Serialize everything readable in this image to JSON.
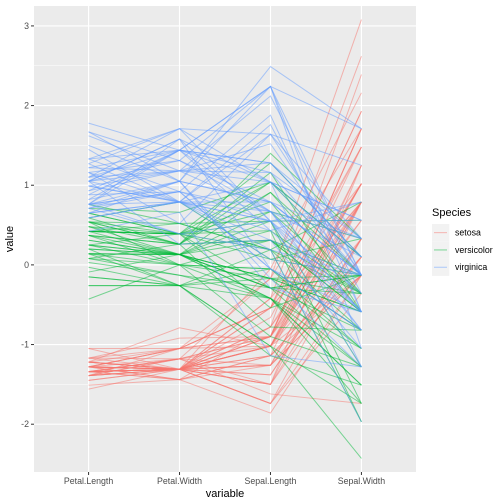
{
  "chart_data": {
    "type": "line",
    "subtype": "parallel-coordinates",
    "title": "",
    "xlabel": "variable",
    "ylabel": "value",
    "categories": [
      "Petal.Length",
      "Petal.Width",
      "Sepal.Length",
      "Sepal.Width"
    ],
    "ylim": [
      -2.6,
      3.25
    ],
    "yticks": [
      -2,
      -1,
      0,
      1,
      2,
      3
    ],
    "grid": true,
    "line_opacity": 0.5,
    "legend": {
      "title": "Species",
      "position": "right",
      "entries": [
        "setosa",
        "versicolor",
        "virginica"
      ]
    },
    "series": [
      {
        "name": "setosa",
        "color": "#F8766D",
        "lines": [
          [
            -1.34,
            -1.31,
            -0.9,
            1.02
          ],
          [
            -1.34,
            -1.31,
            -1.14,
            -0.13
          ],
          [
            -1.39,
            -1.31,
            -1.38,
            0.33
          ],
          [
            -1.28,
            -1.31,
            -1.5,
            0.1
          ],
          [
            -1.34,
            -1.31,
            -1.02,
            1.25
          ],
          [
            -1.17,
            -1.05,
            -0.54,
            1.93
          ],
          [
            -1.34,
            -1.18,
            -1.5,
            0.79
          ],
          [
            -1.28,
            -1.31,
            -1.02,
            0.79
          ],
          [
            -1.34,
            -1.31,
            -1.74,
            -0.36
          ],
          [
            -1.28,
            -1.44,
            -1.14,
            0.1
          ],
          [
            -1.28,
            -1.31,
            -0.54,
            1.48
          ],
          [
            -1.22,
            -1.31,
            -1.26,
            0.79
          ],
          [
            -1.34,
            -1.44,
            -1.26,
            -0.13
          ],
          [
            -1.51,
            -1.44,
            -1.86,
            -0.13
          ],
          [
            -1.45,
            -1.31,
            -0.05,
            2.16
          ],
          [
            -1.28,
            -1.05,
            -0.17,
            3.08
          ],
          [
            -1.39,
            -1.05,
            -0.54,
            1.93
          ],
          [
            -1.34,
            -1.18,
            -0.9,
            1.02
          ],
          [
            -1.17,
            -1.18,
            -0.17,
            1.71
          ],
          [
            -1.28,
            -1.18,
            -0.9,
            1.71
          ],
          [
            -1.17,
            -1.31,
            -0.54,
            0.79
          ],
          [
            -1.28,
            -1.05,
            -0.9,
            1.48
          ],
          [
            -1.56,
            -1.31,
            -1.5,
            1.25
          ],
          [
            -1.17,
            -0.92,
            -0.9,
            0.56
          ],
          [
            -1.05,
            -1.31,
            -1.26,
            0.79
          ],
          [
            -1.22,
            -1.31,
            -1.02,
            -0.13
          ],
          [
            -1.22,
            -1.05,
            -1.02,
            0.79
          ],
          [
            -1.28,
            -1.31,
            -0.78,
            1.02
          ],
          [
            -1.34,
            -1.31,
            -0.78,
            0.79
          ],
          [
            -1.22,
            -1.31,
            -1.38,
            0.33
          ],
          [
            -1.22,
            -1.31,
            -1.26,
            0.1
          ],
          [
            -1.28,
            -1.05,
            -0.54,
            0.79
          ],
          [
            -1.28,
            -1.44,
            -0.78,
            2.39
          ],
          [
            -1.34,
            -1.31,
            -0.42,
            2.62
          ],
          [
            -1.28,
            -1.31,
            -1.14,
            0.1
          ],
          [
            -1.45,
            -1.31,
            -1.02,
            0.33
          ],
          [
            -1.39,
            -1.31,
            -0.42,
            1.02
          ],
          [
            -1.34,
            -1.44,
            -1.14,
            1.25
          ],
          [
            -1.39,
            -1.31,
            -1.74,
            -0.13
          ],
          [
            -1.28,
            -1.31,
            -0.9,
            0.79
          ],
          [
            -1.39,
            -1.18,
            -1.02,
            1.02
          ],
          [
            -1.39,
            -1.18,
            -1.62,
            -1.74
          ],
          [
            -1.39,
            -1.31,
            -1.74,
            0.33
          ],
          [
            -1.22,
            -0.79,
            -1.02,
            1.02
          ],
          [
            -1.05,
            -1.05,
            -0.9,
            1.71
          ],
          [
            -1.34,
            -1.18,
            -1.26,
            -0.13
          ],
          [
            -1.22,
            -1.31,
            -0.9,
            1.71
          ],
          [
            -1.34,
            -1.31,
            -1.5,
            0.33
          ],
          [
            -1.28,
            -1.31,
            -0.66,
            1.48
          ],
          [
            -1.34,
            -1.31,
            -1.02,
            0.56
          ]
        ]
      },
      {
        "name": "versicolor",
        "color": "#00BA38",
        "lines": [
          [
            0.54,
            0.26,
            1.4,
            0.33
          ],
          [
            0.42,
            0.39,
            0.67,
            0.33
          ],
          [
            0.65,
            0.39,
            1.28,
            0.1
          ],
          [
            0.14,
            0.13,
            -0.42,
            -1.74
          ],
          [
            0.48,
            0.39,
            0.79,
            -0.59
          ],
          [
            0.42,
            0.13,
            -0.17,
            -0.59
          ],
          [
            0.54,
            0.52,
            0.55,
            0.56
          ],
          [
            -0.26,
            -0.26,
            -1.14,
            -1.51
          ],
          [
            0.48,
            0.13,
            0.91,
            -0.36
          ],
          [
            0.08,
            0.26,
            -0.78,
            -0.82
          ],
          [
            -0.15,
            -0.26,
            -1.02,
            -2.43
          ],
          [
            0.25,
            0.39,
            0.07,
            -0.13
          ],
          [
            0.14,
            -0.26,
            0.19,
            -1.97
          ],
          [
            0.54,
            0.26,
            0.31,
            -0.36
          ],
          [
            -0.09,
            0.13,
            -0.29,
            -0.36
          ],
          [
            0.37,
            0.26,
            1.04,
            0.1
          ],
          [
            0.42,
            0.39,
            -0.29,
            -0.13
          ],
          [
            0.2,
            -0.26,
            -0.05,
            -0.82
          ],
          [
            0.42,
            0.39,
            0.43,
            -1.97
          ],
          [
            0.08,
            -0.13,
            -0.29,
            -1.28
          ],
          [
            0.59,
            0.79,
            0.07,
            0.33
          ],
          [
            0.14,
            0.13,
            0.31,
            -0.59
          ],
          [
            0.65,
            0.39,
            0.55,
            -1.28
          ],
          [
            0.54,
            0.0,
            0.31,
            -0.59
          ],
          [
            0.31,
            0.13,
            0.67,
            -0.36
          ],
          [
            0.37,
            0.26,
            0.91,
            -0.13
          ],
          [
            0.59,
            0.26,
            1.16,
            -0.59
          ],
          [
            0.71,
            0.66,
            1.04,
            -0.13
          ],
          [
            0.42,
            0.39,
            0.19,
            -0.36
          ],
          [
            -0.15,
            -0.26,
            -0.17,
            -1.05
          ],
          [
            0.03,
            -0.13,
            -0.42,
            -1.51
          ],
          [
            -0.03,
            -0.26,
            -0.42,
            -1.51
          ],
          [
            0.08,
            0.0,
            -0.05,
            -0.82
          ],
          [
            0.76,
            0.52,
            0.19,
            -0.82
          ],
          [
            0.42,
            0.39,
            -0.54,
            -0.13
          ],
          [
            0.42,
            0.52,
            0.19,
            0.79
          ],
          [
            0.54,
            0.39,
            1.04,
            0.1
          ],
          [
            0.37,
            0.13,
            0.55,
            -1.74
          ],
          [
            0.2,
            0.13,
            -0.29,
            -0.13
          ],
          [
            0.14,
            0.13,
            -0.42,
            -1.28
          ],
          [
            0.37,
            0.0,
            -0.42,
            -1.05
          ],
          [
            0.48,
            0.26,
            0.31,
            -0.13
          ],
          [
            0.14,
            0.0,
            -0.05,
            -1.05
          ],
          [
            -0.26,
            -0.26,
            -1.02,
            -1.74
          ],
          [
            0.25,
            0.13,
            -0.29,
            -0.82
          ],
          [
            0.25,
            0.0,
            -0.17,
            -0.13
          ],
          [
            0.25,
            0.13,
            -0.17,
            -0.36
          ],
          [
            0.31,
            0.13,
            0.43,
            -0.36
          ],
          [
            -0.43,
            0.0,
            -0.9,
            -1.28
          ],
          [
            0.2,
            0.13,
            -0.17,
            -0.59
          ]
        ]
      },
      {
        "name": "virginica",
        "color": "#619CFF",
        "lines": [
          [
            1.27,
            1.71,
            0.55,
            0.56
          ],
          [
            0.76,
            0.92,
            -0.05,
            -0.82
          ],
          [
            1.22,
            1.18,
            1.52,
            -0.13
          ],
          [
            1.05,
            0.79,
            0.55,
            -0.36
          ],
          [
            1.16,
            1.31,
            0.79,
            -0.13
          ],
          [
            1.62,
            1.18,
            2.12,
            -0.13
          ],
          [
            0.42,
            0.66,
            -1.14,
            -1.28
          ],
          [
            1.45,
            0.79,
            1.76,
            -0.36
          ],
          [
            1.16,
            0.79,
            1.04,
            -1.28
          ],
          [
            1.33,
            1.71,
            1.64,
            1.25
          ],
          [
            0.76,
            1.05,
            0.79,
            0.33
          ],
          [
            0.88,
            0.92,
            0.67,
            -0.82
          ],
          [
            0.99,
            1.18,
            1.16,
            -0.13
          ],
          [
            0.71,
            1.05,
            -0.17,
            -1.28
          ],
          [
            0.76,
            1.58,
            -0.05,
            -0.59
          ],
          [
            0.88,
            1.44,
            0.67,
            0.33
          ],
          [
            0.99,
            0.79,
            0.79,
            -0.13
          ],
          [
            1.67,
            1.31,
            2.24,
            1.71
          ],
          [
            1.78,
            1.44,
            2.24,
            -1.05
          ],
          [
            0.71,
            0.39,
            0.19,
            -1.97
          ],
          [
            1.1,
            1.44,
            1.28,
            0.33
          ],
          [
            0.65,
            1.05,
            -0.29,
            -0.59
          ],
          [
            1.67,
            1.05,
            2.24,
            -0.59
          ],
          [
            0.65,
            0.79,
            0.55,
            -0.82
          ],
          [
            1.1,
            1.18,
            1.04,
            0.56
          ],
          [
            1.27,
            0.79,
            1.64,
            0.33
          ],
          [
            0.59,
            0.79,
            0.43,
            -0.59
          ],
          [
            0.65,
            0.79,
            0.31,
            -0.13
          ],
          [
            1.05,
            1.18,
            0.67,
            -0.59
          ],
          [
            1.16,
            0.52,
            1.64,
            -0.13
          ],
          [
            1.33,
            0.92,
            1.88,
            -0.59
          ],
          [
            1.5,
            1.05,
            2.49,
            1.71
          ],
          [
            1.05,
            1.31,
            0.67,
            -0.59
          ],
          [
            0.76,
            0.39,
            0.55,
            -0.59
          ],
          [
            1.05,
            0.26,
            0.31,
            -1.05
          ],
          [
            1.33,
            1.44,
            2.24,
            -0.13
          ],
          [
            1.05,
            1.58,
            0.55,
            0.79
          ],
          [
            0.99,
            0.79,
            0.67,
            0.1
          ],
          [
            0.59,
            0.79,
            0.19,
            -0.13
          ],
          [
            0.93,
            1.18,
            1.28,
            0.1
          ],
          [
            1.05,
            1.58,
            1.04,
            0.1
          ],
          [
            0.76,
            1.44,
            1.28,
            0.1
          ],
          [
            0.76,
            0.92,
            -0.05,
            -0.82
          ],
          [
            1.22,
            1.44,
            1.16,
            0.33
          ],
          [
            1.1,
            1.71,
            1.04,
            0.56
          ],
          [
            0.82,
            1.44,
            1.04,
            -0.13
          ],
          [
            0.71,
            0.92,
            0.55,
            -1.28
          ],
          [
            0.82,
            1.05,
            0.79,
            -0.13
          ],
          [
            0.93,
            1.44,
            0.43,
            0.79
          ],
          [
            0.76,
            0.79,
            0.07,
            -0.13
          ]
        ]
      }
    ]
  }
}
